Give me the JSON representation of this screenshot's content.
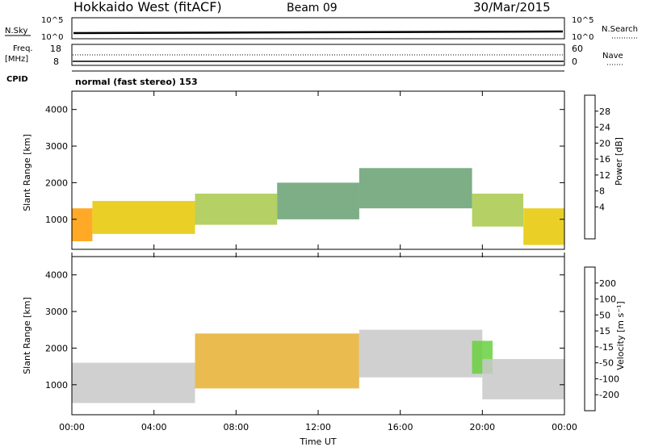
{
  "header": {
    "station": "Hokkaido West (fitACF)",
    "beam": "Beam 09",
    "date": "30/Mar/2015"
  },
  "top_panels": {
    "nsky_label": "N.Sky",
    "nsky_ticks": [
      "10^5",
      "10^0"
    ],
    "nsky_right_ticks": [
      "10^5",
      "10^0"
    ],
    "nsearch_label": "N.Search",
    "freq_label_1": "Freq.",
    "freq_label_2": "[MHz]",
    "freq_ticks": [
      "18",
      "8"
    ],
    "nave_ticks": [
      "60",
      "0"
    ],
    "nave_label": "Nave",
    "cpid_label": "CPID",
    "cpid_value": "normal (fast stereo) 153"
  },
  "chart_data": [
    {
      "type": "heatmap",
      "panel": "power",
      "ylabel": "Slant Range [km]",
      "yticks": [
        "4000",
        "3000",
        "2000",
        "1000"
      ],
      "ylim": [
        180,
        4500
      ],
      "colorbar_label": "Power [dB]",
      "colorbar_ticks": [
        "28",
        "24",
        "20",
        "16",
        "12",
        "8",
        "4"
      ],
      "colorbar_colors": [
        "#ff0000",
        "#ff5a00",
        "#ff9a00",
        "#e6c800",
        "#a8c84a",
        "#66a070",
        "#3a8a6a",
        "#2a4aa0",
        "#0010ff"
      ],
      "bands": [
        {
          "t0": 0.0,
          "t1": 1.0,
          "r0": 400,
          "r1": 1300,
          "value": 22
        },
        {
          "t0": 1.0,
          "t1": 6.0,
          "r0": 600,
          "r1": 1500,
          "value": 18
        },
        {
          "t0": 6.0,
          "t1": 10.0,
          "r0": 850,
          "r1": 1700,
          "value": 16
        },
        {
          "t0": 10.0,
          "t1": 14.0,
          "r0": 1000,
          "r1": 2000,
          "value": 14
        },
        {
          "t0": 14.0,
          "t1": 19.5,
          "r0": 1300,
          "r1": 2400,
          "value": 12
        },
        {
          "t0": 19.5,
          "t1": 22.0,
          "r0": 800,
          "r1": 1700,
          "value": 16
        },
        {
          "t0": 22.0,
          "t1": 24.0,
          "r0": 300,
          "r1": 1300,
          "value": 18
        }
      ]
    },
    {
      "type": "heatmap",
      "panel": "velocity",
      "xlabel": "Time UT",
      "xticks": [
        "00:00",
        "04:00",
        "08:00",
        "12:00",
        "16:00",
        "20:00",
        "00:00"
      ],
      "xlim": [
        0,
        24
      ],
      "ylabel": "Slant Range [km]",
      "yticks": [
        "4000",
        "3000",
        "2000",
        "1000"
      ],
      "ylim": [
        180,
        4500
      ],
      "colorbar_label": "Velocity [m s⁻¹]",
      "colorbar_ticks": [
        "200",
        "100",
        "50",
        "15",
        "-15",
        "-50",
        "-100",
        "-200"
      ],
      "colorbar_colors": [
        "#1830b0",
        "#3e7b6a",
        "#4aa050",
        "#68d040",
        "#c8c8c8",
        "#e6b030",
        "#ff8a00",
        "#ff5000",
        "#ff0000"
      ],
      "bands": [
        {
          "t0": 0.0,
          "t1": 6.0,
          "r0": 500,
          "r1": 1600,
          "value": 0
        },
        {
          "t0": 6.0,
          "t1": 14.0,
          "r0": 900,
          "r1": 2400,
          "value": -30
        },
        {
          "t0": 14.0,
          "t1": 20.0,
          "r0": 1200,
          "r1": 2500,
          "value": -10
        },
        {
          "t0": 19.5,
          "t1": 20.5,
          "r0": 1300,
          "r1": 2200,
          "value": 40
        },
        {
          "t0": 20.0,
          "t1": 24.0,
          "r0": 600,
          "r1": 1700,
          "value": 0
        }
      ]
    }
  ]
}
